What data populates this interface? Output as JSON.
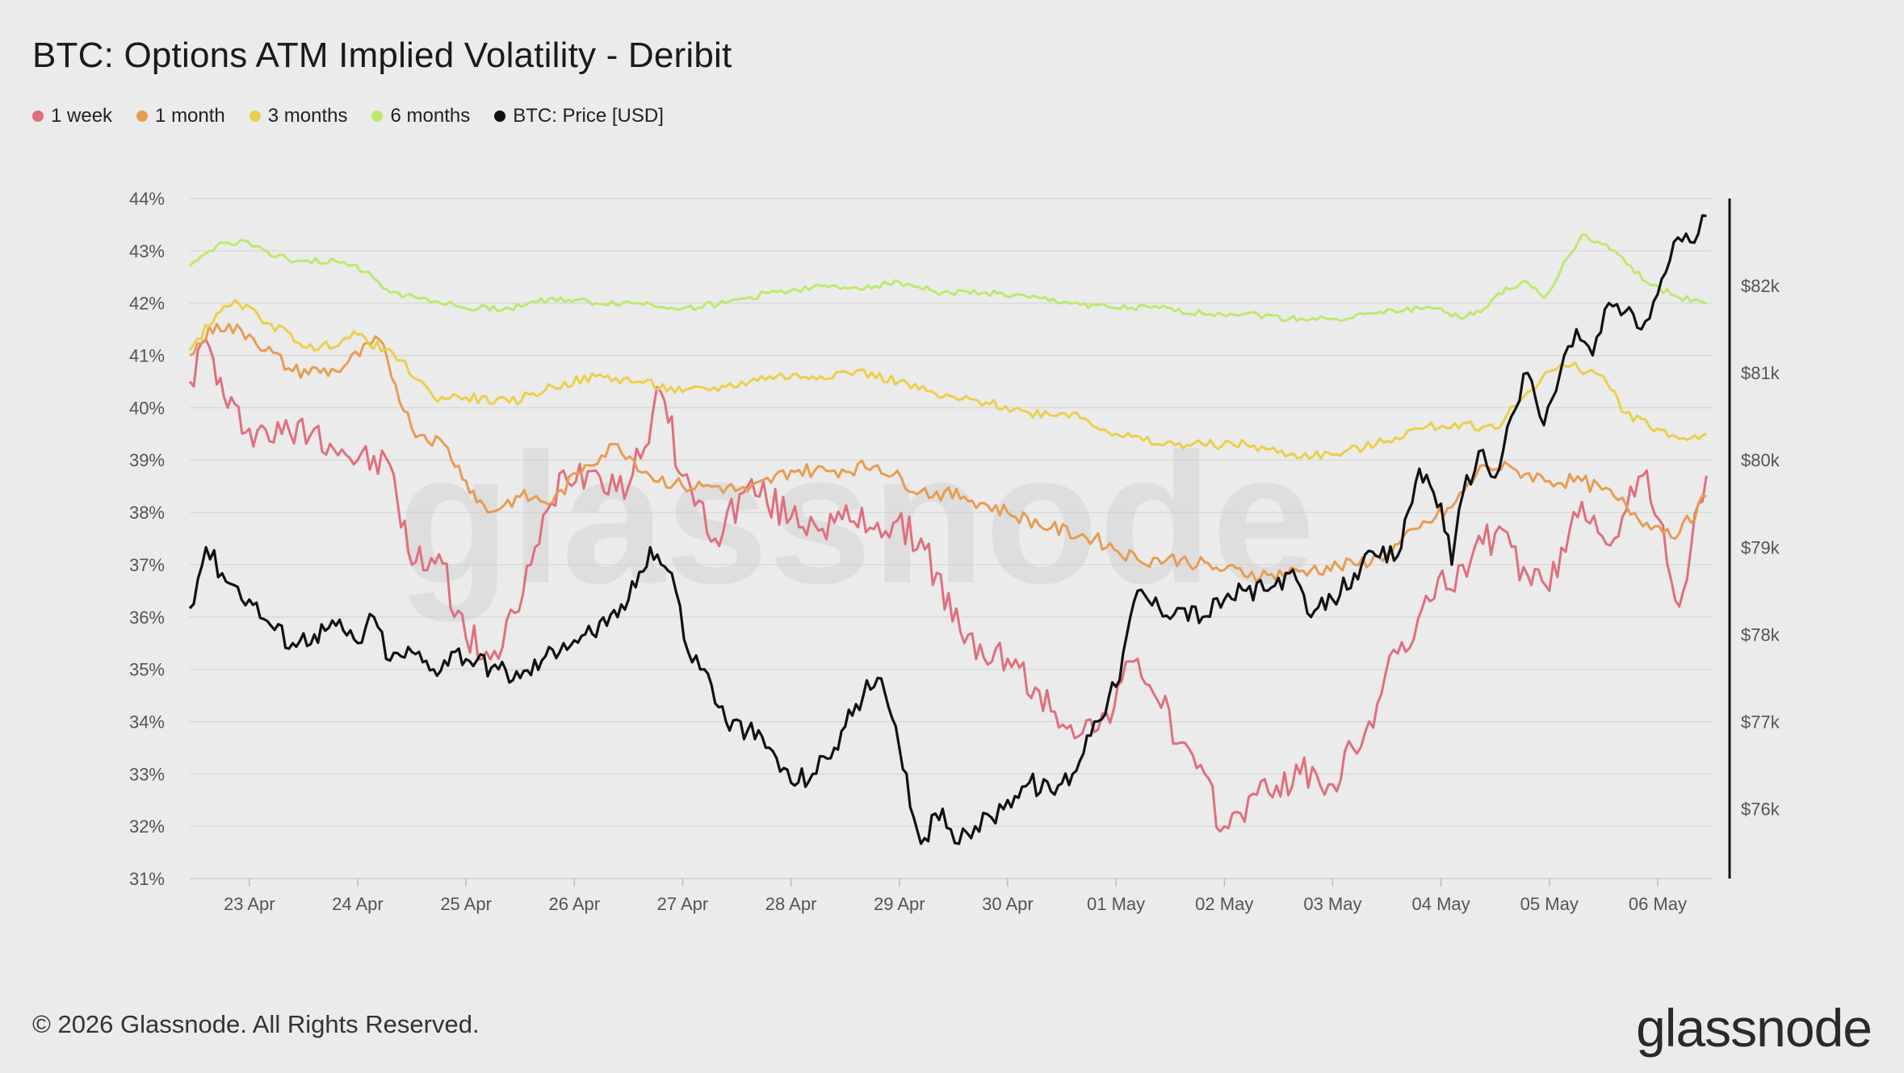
{
  "title": "BTC: Options ATM Implied Volatility - Deribit",
  "footer": "© 2026 Glassnode. All Rights Reserved.",
  "brand": "glassnode",
  "watermark": "glassnode",
  "legend": [
    {
      "label": "1 week",
      "color": "#e06f7d"
    },
    {
      "label": "1 month",
      "color": "#e89c52"
    },
    {
      "label": "3 months",
      "color": "#ead04a"
    },
    {
      "label": "6 months",
      "color": "#bde86f"
    },
    {
      "label": "BTC: Price [USD]",
      "color": "#111111"
    }
  ],
  "chart_data": {
    "type": "line",
    "x_labels": [
      "23 Apr",
      "24 Apr",
      "25 Apr",
      "26 Apr",
      "27 Apr",
      "28 Apr",
      "29 Apr",
      "30 Apr",
      "01 May",
      "02 May",
      "03 May",
      "04 May",
      "05 May",
      "06 May"
    ],
    "xlim": [
      22.45,
      36.5
    ],
    "left_axis": {
      "ticks": [
        "44%",
        "43%",
        "42%",
        "41%",
        "40%",
        "39%",
        "38%",
        "37%",
        "36%",
        "35%",
        "34%",
        "33%",
        "32%",
        "31%"
      ],
      "ylim": [
        31,
        44
      ]
    },
    "right_axis": {
      "ticks": [
        "$82k",
        "$81k",
        "$80k",
        "$79k",
        "$78k",
        "$77k",
        "$76k"
      ],
      "ylim": [
        75200,
        83000
      ]
    },
    "grid": true,
    "legend_position": "top-left",
    "series": [
      {
        "name": "1 week",
        "axis": "left",
        "color": "#e06f7d",
        "x": [
          22.45,
          22.6,
          22.8,
          23.0,
          23.3,
          23.6,
          24.0,
          24.3,
          24.5,
          24.75,
          25.0,
          25.3,
          25.6,
          25.9,
          26.2,
          26.5,
          26.8,
          27.0,
          27.3,
          27.6,
          28.0,
          28.4,
          28.8,
          29.2,
          29.6,
          30.0,
          30.4,
          30.8,
          31.2,
          31.6,
          32.0,
          32.3,
          32.7,
          33.0,
          33.3,
          33.6,
          33.9,
          34.2,
          34.5,
          34.8,
          35.0,
          35.3,
          35.6,
          35.9,
          36.2,
          36.45
        ],
        "values": [
          40.5,
          41.3,
          40.0,
          39.6,
          39.5,
          39.6,
          39.0,
          38.9,
          37.0,
          37.2,
          35.6,
          35.2,
          37.0,
          38.8,
          38.8,
          38.5,
          40.3,
          38.7,
          37.5,
          38.5,
          37.9,
          37.8,
          37.8,
          37.5,
          35.5,
          35.2,
          34.2,
          33.8,
          35.2,
          33.6,
          32.0,
          32.6,
          33.0,
          32.8,
          33.8,
          35.3,
          36.3,
          37.0,
          37.6,
          36.8,
          36.5,
          38.2,
          37.5,
          38.8,
          36.2,
          38.7
        ]
      },
      {
        "name": "1 month",
        "axis": "left",
        "color": "#e89c52",
        "x": [
          22.45,
          22.7,
          23.0,
          23.4,
          23.8,
          24.2,
          24.5,
          24.8,
          25.0,
          25.2,
          25.5,
          25.8,
          26.1,
          26.4,
          26.7,
          27.0,
          27.3,
          27.6,
          28.0,
          28.4,
          28.8,
          29.2,
          29.6,
          30.0,
          30.4,
          30.8,
          31.2,
          31.6,
          32.0,
          32.4,
          32.8,
          33.2,
          33.5,
          33.8,
          34.1,
          34.4,
          34.7,
          35.0,
          35.3,
          35.6,
          35.9,
          36.2,
          36.45
        ],
        "values": [
          41.0,
          41.6,
          41.4,
          40.7,
          40.7,
          41.3,
          39.6,
          39.3,
          38.6,
          38.0,
          38.3,
          38.2,
          38.9,
          39.3,
          38.7,
          38.5,
          38.5,
          38.4,
          38.8,
          38.8,
          38.9,
          38.4,
          38.3,
          38.0,
          37.7,
          37.5,
          37.1,
          37.1,
          36.9,
          36.8,
          36.9,
          37.0,
          37.2,
          37.7,
          38.1,
          38.9,
          38.8,
          38.6,
          38.6,
          38.3,
          37.8,
          37.6,
          38.3
        ]
      },
      {
        "name": "3 months",
        "axis": "left",
        "color": "#ead04a",
        "x": [
          22.45,
          22.7,
          22.9,
          23.2,
          23.6,
          24.0,
          24.4,
          24.7,
          25.0,
          25.4,
          25.8,
          26.2,
          26.6,
          27.0,
          27.4,
          27.8,
          28.2,
          28.6,
          29.0,
          29.4,
          29.8,
          30.2,
          30.6,
          31.0,
          31.4,
          31.8,
          32.2,
          32.6,
          33.0,
          33.4,
          33.8,
          34.2,
          34.5,
          34.8,
          35.0,
          35.2,
          35.5,
          35.7,
          36.0,
          36.2,
          36.45
        ],
        "values": [
          41.1,
          41.8,
          42.0,
          41.6,
          41.1,
          41.4,
          40.9,
          40.2,
          40.2,
          40.1,
          40.4,
          40.6,
          40.5,
          40.3,
          40.4,
          40.6,
          40.6,
          40.7,
          40.5,
          40.2,
          40.1,
          39.9,
          39.9,
          39.5,
          39.3,
          39.3,
          39.3,
          39.1,
          39.1,
          39.3,
          39.6,
          39.7,
          39.6,
          40.3,
          40.7,
          40.8,
          40.6,
          39.9,
          39.6,
          39.4,
          39.5
        ]
      },
      {
        "name": "6 months",
        "axis": "left",
        "color": "#bde86f",
        "x": [
          22.45,
          22.7,
          22.95,
          23.2,
          23.5,
          23.8,
          24.1,
          24.3,
          24.6,
          25.0,
          25.4,
          25.8,
          26.2,
          26.6,
          27.0,
          27.4,
          27.8,
          28.2,
          28.6,
          29.0,
          29.4,
          29.8,
          30.2,
          30.6,
          31.0,
          31.4,
          31.8,
          32.2,
          32.6,
          33.0,
          33.4,
          33.8,
          34.0,
          34.2,
          34.4,
          34.6,
          34.8,
          34.95,
          35.1,
          35.3,
          35.6,
          35.9,
          36.2,
          36.45
        ],
        "values": [
          42.7,
          43.1,
          43.2,
          42.9,
          42.8,
          42.8,
          42.6,
          42.2,
          42.1,
          41.9,
          41.9,
          42.1,
          42.0,
          42.0,
          41.9,
          42.0,
          42.2,
          42.3,
          42.3,
          42.4,
          42.2,
          42.2,
          42.1,
          42.0,
          41.9,
          41.9,
          41.8,
          41.8,
          41.7,
          41.7,
          41.8,
          41.9,
          41.9,
          41.7,
          41.9,
          42.3,
          42.4,
          42.1,
          42.6,
          43.3,
          43.0,
          42.4,
          42.1,
          42.0
        ]
      },
      {
        "name": "BTC: Price [USD]",
        "axis": "right",
        "color": "#111111",
        "x": [
          22.45,
          22.6,
          22.75,
          23.0,
          23.2,
          23.4,
          23.6,
          23.8,
          24.0,
          24.15,
          24.3,
          24.5,
          24.7,
          24.9,
          25.1,
          25.3,
          25.5,
          25.7,
          25.9,
          26.1,
          26.3,
          26.5,
          26.7,
          26.9,
          27.05,
          27.2,
          27.4,
          27.6,
          27.8,
          28.0,
          28.2,
          28.4,
          28.6,
          28.8,
          29.0,
          29.2,
          29.4,
          29.55,
          29.7,
          29.85,
          30.0,
          30.2,
          30.4,
          30.6,
          30.8,
          31.0,
          31.2,
          31.4,
          31.6,
          31.8,
          32.0,
          32.2,
          32.4,
          32.6,
          32.8,
          33.0,
          33.2,
          33.4,
          33.6,
          33.8,
          34.0,
          34.1,
          34.2,
          34.35,
          34.5,
          34.65,
          34.8,
          34.95,
          35.1,
          35.25,
          35.4,
          35.55,
          35.7,
          35.85,
          36.0,
          36.15,
          36.3,
          36.45
        ],
        "values": [
          78.3,
          79.0,
          78.7,
          78.4,
          78.1,
          77.9,
          78.0,
          78.1,
          77.9,
          78.2,
          77.7,
          77.8,
          77.6,
          77.8,
          77.7,
          77.6,
          77.5,
          77.7,
          77.9,
          78.0,
          78.1,
          78.4,
          79.0,
          78.7,
          77.8,
          77.6,
          77.0,
          76.9,
          76.7,
          76.3,
          76.4,
          76.7,
          77.2,
          77.5,
          76.7,
          75.6,
          76.0,
          75.6,
          75.8,
          75.9,
          76.1,
          76.3,
          76.2,
          76.4,
          77.0,
          77.4,
          78.5,
          78.3,
          78.3,
          78.2,
          78.4,
          78.5,
          78.5,
          78.7,
          78.2,
          78.4,
          78.7,
          78.9,
          78.9,
          79.9,
          79.5,
          78.8,
          79.6,
          80.1,
          79.8,
          80.5,
          81.0,
          80.4,
          81.0,
          81.5,
          81.2,
          81.8,
          81.7,
          81.5,
          81.9,
          82.5,
          82.5,
          82.8
        ]
      }
    ]
  }
}
